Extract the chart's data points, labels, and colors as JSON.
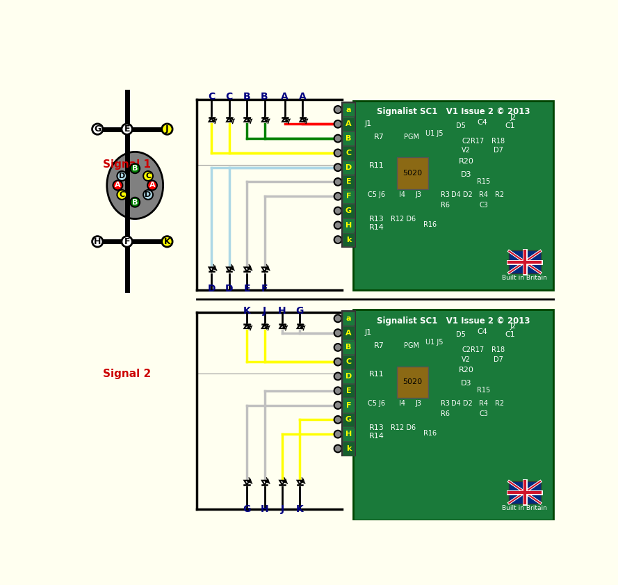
{
  "bg_color": "#FFFFF0",
  "signal1_label": "Signal 1",
  "signal2_label": "Signal 2",
  "board_bg": "#1a7a3a",
  "connector_labels_top": [
    "C",
    "C",
    "B",
    "B",
    "A",
    "A"
  ],
  "connector_labels_bottom1": [
    "D",
    "D",
    "E",
    "F"
  ],
  "connector_labels_bottom2": [
    "K",
    "J",
    "H",
    "G"
  ],
  "connector_labels_bottom_out": [
    "G",
    "H",
    "J",
    "K"
  ],
  "terminal_labels": [
    "a",
    "A",
    "B",
    "C",
    "D",
    "E",
    "F",
    "G",
    "H",
    "k"
  ],
  "wire_colors_top": [
    "#FFFF00",
    "#FFFF00",
    "#008000",
    "#008000",
    "#FF0000",
    "#FF0000"
  ],
  "wire_colors_bottom_upper": [
    "#ADD8E6",
    "#ADD8E6",
    "#C0C0C0",
    "#C0C0C0"
  ],
  "wire_colors_top2": [
    "#FFFF00",
    "#FFFF00",
    "#C0C0C0",
    "#C0C0C0"
  ],
  "wire_colors_bot2": [
    "#C0C0C0",
    "#C0C0C0",
    "#FFFF00",
    "#FFFF00"
  ]
}
